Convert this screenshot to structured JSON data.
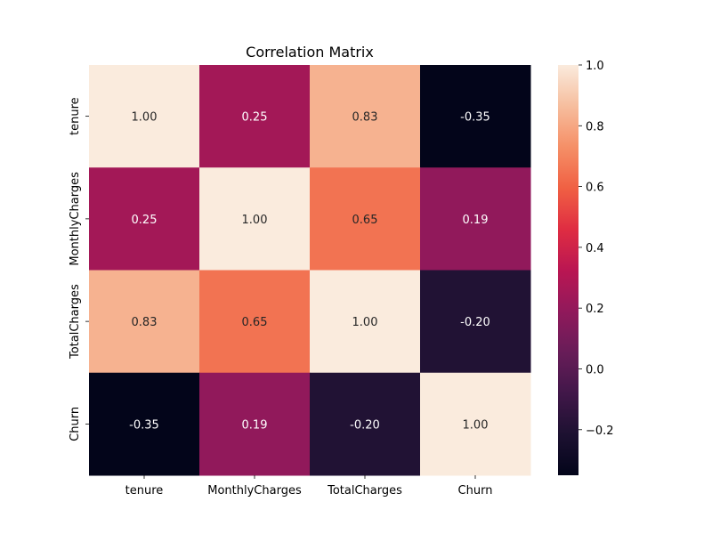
{
  "chart_data": {
    "type": "heatmap",
    "title": "Correlation Matrix",
    "x_labels": [
      "tenure",
      "MonthlyCharges",
      "TotalCharges",
      "Churn"
    ],
    "y_labels": [
      "tenure",
      "MonthlyCharges",
      "TotalCharges",
      "Churn"
    ],
    "matrix": [
      [
        1.0,
        0.25,
        0.83,
        -0.35
      ],
      [
        0.25,
        1.0,
        0.65,
        0.19
      ],
      [
        0.83,
        0.65,
        1.0,
        -0.2
      ],
      [
        -0.35,
        0.19,
        -0.2,
        1.0
      ]
    ],
    "annotation_format": "0.00",
    "colormap": "rocket",
    "colorbar": {
      "vmin": -0.35,
      "vmax": 1.0,
      "ticks": [
        -0.2,
        0.0,
        0.2,
        0.4,
        0.6,
        0.8,
        1.0
      ],
      "tick_labels": [
        "−0.2",
        "0.0",
        "0.2",
        "0.4",
        "0.6",
        "0.8",
        "1.0"
      ]
    },
    "grid": false
  }
}
